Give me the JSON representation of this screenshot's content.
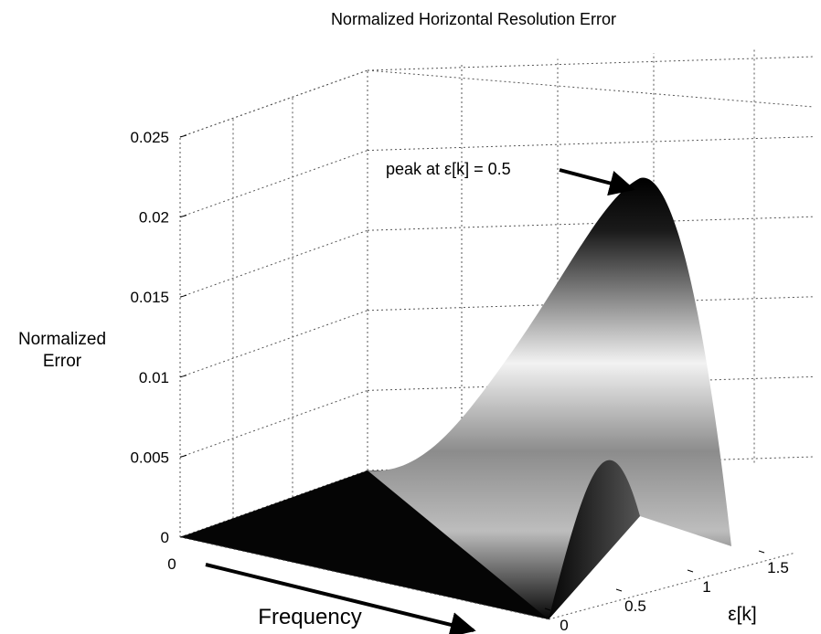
{
  "chart_data": {
    "type": "surface",
    "title": "Normalized Horizontal Resolution Error",
    "zlabel_lines": [
      "Normalized",
      "Error"
    ],
    "xlabel": "Frequency",
    "ylabel": "ε[k]",
    "z_ticks": [
      "0",
      "0.005",
      "0.01",
      "0.015",
      "0.02",
      "0.025"
    ],
    "z_tick_values": [
      0,
      0.005,
      0.01,
      0.015,
      0.02,
      0.025
    ],
    "zlim": [
      0,
      0.025
    ],
    "frequency_ticks": [
      "0"
    ],
    "epsilon_ticks": [
      "0",
      "0.5",
      "1",
      "1.5"
    ],
    "epsilon_tick_values": [
      0,
      0.5,
      1,
      1.5
    ],
    "grid": true,
    "colormap": "gray",
    "surface_peak": {
      "epsilon": 0.5,
      "value": 0.0225
    },
    "annotation": "peak at ε[k] = 0.5"
  }
}
